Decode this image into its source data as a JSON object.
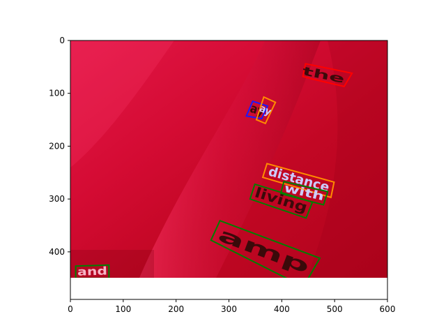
{
  "chart_data": {
    "type": "image",
    "xlim": [
      0,
      600
    ],
    "ylim": [
      490,
      0
    ],
    "image_extent": {
      "x": [
        0,
        600
      ],
      "y": [
        0,
        450
      ]
    },
    "xticks": [
      0,
      100,
      200,
      300,
      400,
      500,
      600
    ],
    "yticks": [
      0,
      100,
      200,
      300,
      400
    ],
    "xtick_labels": [
      "0",
      "100",
      "200",
      "300",
      "400",
      "500",
      "600"
    ],
    "ytick_labels": [
      "0",
      "100",
      "200",
      "300",
      "400"
    ],
    "colors": {
      "fabric": "#d4082c",
      "red_box": "#ff0000",
      "blue_box": "#1a1aff",
      "orange_box": "#ff8c00",
      "green_box": "#008000"
    },
    "text_annotations": [
      {
        "text": "the",
        "color": "red",
        "polygon": [
          [
            445,
            44
          ],
          [
            533,
            62
          ],
          [
            518,
            87
          ],
          [
            458,
            73
          ],
          [
            440,
            68
          ]
        ],
        "text_color": "#3a0a0a"
      },
      {
        "text": "ay",
        "color": "blue",
        "polygon": [
          [
            345,
            115
          ],
          [
            373,
            124
          ],
          [
            362,
            148
          ],
          [
            333,
            143
          ]
        ],
        "text_color": "#3a0a0a"
      },
      {
        "text": "ay",
        "color": "orange",
        "polygon": [
          [
            366,
            107
          ],
          [
            388,
            117
          ],
          [
            369,
            157
          ],
          [
            352,
            150
          ]
        ],
        "text_color": "#ccccff"
      },
      {
        "text": "distance",
        "color": "orange",
        "polygon": [
          [
            372,
            233
          ],
          [
            499,
            268
          ],
          [
            493,
            297
          ],
          [
            364,
            259
          ]
        ],
        "text_color": "#ccccff"
      },
      {
        "text": "with",
        "color": "green",
        "polygon": [
          [
            404,
            267
          ],
          [
            487,
            286
          ],
          [
            479,
            311
          ],
          [
            398,
            290
          ]
        ],
        "text_color": "#ccccff"
      },
      {
        "text": "living",
        "color": "green",
        "polygon": [
          [
            349,
            272
          ],
          [
            458,
            306
          ],
          [
            446,
            336
          ],
          [
            340,
            300
          ]
        ],
        "text_color": "#3a0a0a"
      },
      {
        "text": "amp",
        "color": "green",
        "polygon": [
          [
            283,
            341
          ],
          [
            472,
            412
          ],
          [
            441,
            466
          ],
          [
            266,
            378
          ]
        ],
        "text_color": "#3a0a0a"
      },
      {
        "text": "and",
        "color": "green",
        "polygon": [
          [
            10,
            427
          ],
          [
            73,
            425
          ],
          [
            73,
            450
          ],
          [
            10,
            450
          ]
        ],
        "text_color": "#f6b6c6"
      }
    ]
  }
}
